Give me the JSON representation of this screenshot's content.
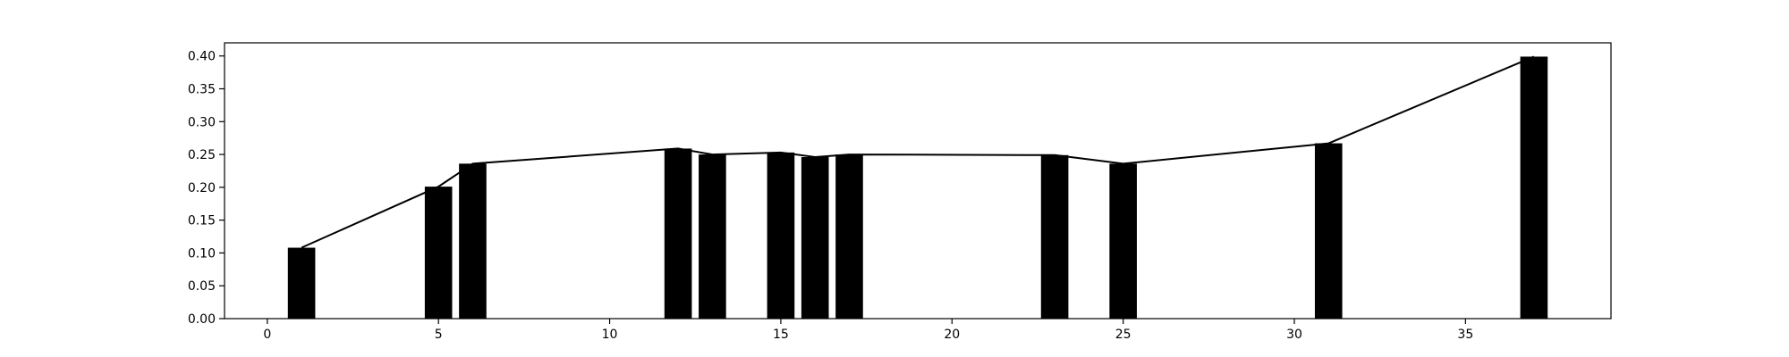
{
  "chart_data": {
    "type": "bar",
    "x": [
      1,
      5,
      6,
      12,
      13,
      15,
      16,
      17,
      23,
      25,
      31,
      37
    ],
    "values": [
      0.108,
      0.201,
      0.236,
      0.259,
      0.25,
      0.253,
      0.246,
      0.25,
      0.249,
      0.236,
      0.267,
      0.399
    ],
    "line_overlay": true,
    "xlim": [
      -1.25,
      39.25
    ],
    "ylim": [
      0,
      0.42
    ],
    "xticks": [
      0,
      5,
      10,
      15,
      20,
      25,
      30,
      35
    ],
    "yticks": [
      0.0,
      0.05,
      0.1,
      0.15,
      0.2,
      0.25,
      0.3,
      0.35,
      0.4
    ],
    "grid": false,
    "title": "",
    "xlabel": "",
    "ylabel": "",
    "colors": {
      "bar": "#000000",
      "line": "#000000",
      "axes": "#000000",
      "background": "#ffffff"
    }
  }
}
